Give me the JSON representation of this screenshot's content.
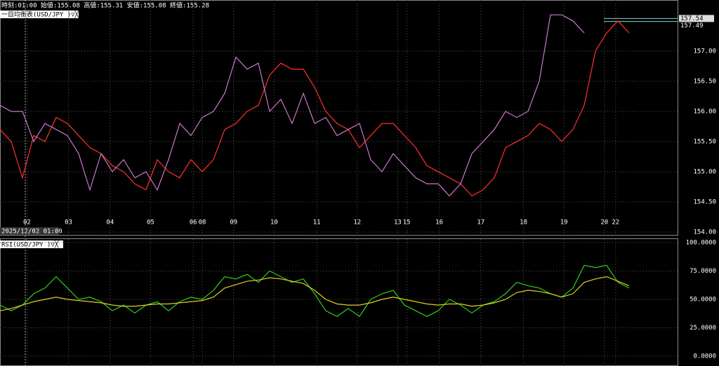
{
  "chart_data": [
    {
      "type": "line",
      "header": "時刻:01:00 始値:155.08 高値:155.31 安値:155.08 終値:155.28",
      "indicator_label": "一目均衡表(USD/JPY )▽╳",
      "cursor_label": "2025/12/02 01:00",
      "xlim": [
        0,
        60
      ],
      "xticks": [
        {
          "value": 2.4,
          "label": "02"
        },
        {
          "value": 6.1,
          "label": "03"
        },
        {
          "value": 9.8,
          "label": "04"
        },
        {
          "value": 13.4,
          "label": "05"
        },
        {
          "value": 17.2,
          "label": "06"
        },
        {
          "value": 18,
          "label": "08"
        },
        {
          "value": 20.8,
          "label": "09"
        },
        {
          "value": 24.4,
          "label": "10"
        },
        {
          "value": 28.2,
          "label": "11"
        },
        {
          "value": 31.8,
          "label": "12"
        },
        {
          "value": 35.4,
          "label": "13"
        },
        {
          "value": 36.2,
          "label": "15"
        },
        {
          "value": 39.1,
          "label": "16"
        },
        {
          "value": 42.8,
          "label": "17"
        },
        {
          "value": 46.6,
          "label": "18"
        },
        {
          "value": 50.2,
          "label": "19"
        },
        {
          "value": 53.8,
          "label": "20"
        },
        {
          "value": 54.8,
          "label": "22"
        }
      ],
      "ylim": [
        154.0,
        157.73
      ],
      "yticks": [
        {
          "value": 154,
          "label": "154.00"
        },
        {
          "value": 154.5,
          "label": "154.50"
        },
        {
          "value": 155,
          "label": "155.00"
        },
        {
          "value": 155.5,
          "label": "155.50"
        },
        {
          "value": 156,
          "label": "156.00"
        },
        {
          "value": 156.5,
          "label": "156.50"
        },
        {
          "value": 157,
          "label": "157.00"
        }
      ],
      "price_labels": [
        157.54,
        157.49
      ],
      "grid": true,
      "series": [
        {
          "color": "#ff3030",
          "values": [
            155.7,
            155.5,
            154.9,
            155.6,
            155.5,
            155.9,
            155.8,
            155.6,
            155.4,
            155.3,
            155.1,
            155.0,
            154.8,
            154.7,
            155.2,
            155.0,
            154.9,
            155.2,
            155.0,
            155.2,
            155.7,
            155.8,
            156.0,
            156.1,
            156.6,
            156.8,
            156.7,
            156.7,
            156.4,
            156.0,
            155.8,
            155.7,
            155.4,
            155.6,
            155.8,
            155.8,
            155.6,
            155.4,
            155.1,
            155.0,
            154.9,
            154.8,
            154.6,
            154.7,
            154.9,
            155.4,
            155.5,
            155.6,
            155.8,
            155.7,
            155.5,
            155.7,
            156.1,
            157.0,
            157.3,
            157.5,
            157.3
          ]
        },
        {
          "color": "#cc77cc",
          "values": [
            156.1,
            156.0,
            156.0,
            155.5,
            155.8,
            155.7,
            155.6,
            155.3,
            154.7,
            155.3,
            155.0,
            155.2,
            154.9,
            155.0,
            154.7,
            155.2,
            155.8,
            155.6,
            155.9,
            156.0,
            156.3,
            156.9,
            156.7,
            156.8,
            156.0,
            156.2,
            155.8,
            156.3,
            155.8,
            155.9,
            155.6,
            155.7,
            155.8,
            155.2,
            155.0,
            155.3,
            155.1,
            154.9,
            154.8,
            154.8,
            154.6,
            154.8,
            155.3,
            155.5,
            155.7,
            156.0,
            155.9,
            156.0,
            156.5,
            157.6,
            157.6,
            157.5,
            157.3,
            null,
            null,
            null,
            null
          ]
        }
      ]
    },
    {
      "type": "line",
      "indicator_label": "RSI(USD/JPY )▽╳",
      "xlim": [
        0,
        60
      ],
      "ylim": [
        0,
        100
      ],
      "yticks": [
        {
          "value": 0,
          "label": "0.0000"
        },
        {
          "value": 25,
          "label": "25.0000"
        },
        {
          "value": 50,
          "label": "50.0000"
        },
        {
          "value": 75,
          "label": "75.0000"
        },
        {
          "value": 100,
          "label": "100.0000"
        }
      ],
      "grid": true,
      "series": [
        {
          "color": "#33cc22",
          "values": [
            45,
            40,
            45,
            55,
            60,
            70,
            60,
            50,
            52,
            48,
            40,
            45,
            38,
            45,
            48,
            40,
            48,
            52,
            50,
            58,
            70,
            68,
            72,
            65,
            75,
            70,
            65,
            68,
            55,
            40,
            35,
            42,
            35,
            50,
            55,
            58,
            45,
            40,
            35,
            40,
            50,
            45,
            38,
            45,
            48,
            55,
            65,
            62,
            60,
            55,
            52,
            60,
            80,
            78,
            80,
            65,
            60
          ]
        },
        {
          "color": "#e0d020",
          "values": [
            40,
            42,
            45,
            48,
            50,
            52,
            50,
            49,
            48,
            47,
            45,
            44,
            44,
            45,
            46,
            46,
            47,
            48,
            49,
            52,
            60,
            63,
            66,
            67,
            69,
            68,
            66,
            64,
            58,
            50,
            46,
            45,
            45,
            47,
            50,
            52,
            50,
            48,
            46,
            45,
            46,
            46,
            44,
            45,
            47,
            50,
            56,
            58,
            57,
            55,
            52,
            55,
            65,
            68,
            70,
            66,
            62
          ]
        }
      ]
    }
  ]
}
